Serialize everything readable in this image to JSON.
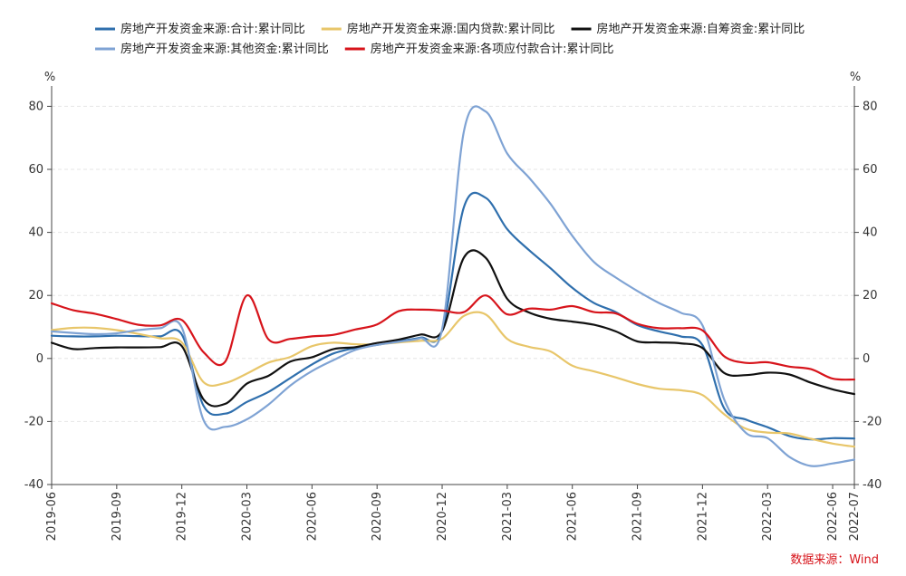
{
  "chart_data": {
    "type": "line",
    "y_unit_left": "%",
    "y_unit_right": "%",
    "ylim": [
      -40,
      85
    ],
    "yticks": [
      -40,
      -20,
      0,
      20,
      40,
      60,
      80
    ],
    "grid": true,
    "legend_position": "top",
    "source": "数据来源：Wind",
    "x": [
      "2019-06",
      "2019-07",
      "2019-08",
      "2019-09",
      "2019-10",
      "2019-11",
      "2019-12",
      "2020-01",
      "2020-02",
      "2020-03",
      "2020-04",
      "2020-05",
      "2020-06",
      "2020-07",
      "2020-08",
      "2020-09",
      "2020-10",
      "2020-11",
      "2020-12",
      "2021-01",
      "2021-02",
      "2021-03",
      "2021-04",
      "2021-05",
      "2021-06",
      "2021-07",
      "2021-08",
      "2021-09",
      "2021-10",
      "2021-11",
      "2021-12",
      "2022-01",
      "2022-02",
      "2022-03",
      "2022-04",
      "2022-05",
      "2022-06",
      "2022-07"
    ],
    "xtick_labels": [
      "2019-06",
      "2019-09",
      "2019-12",
      "2020-03",
      "2020-06",
      "2020-09",
      "2020-12",
      "2021-03",
      "2021-06",
      "2021-09",
      "2021-12",
      "2022-03",
      "2022-06",
      "2022-07"
    ],
    "series": [
      {
        "name": "房地产开发资金来源:合计:累计同比",
        "color": "#2f6fad",
        "values": [
          7.2,
          7.0,
          7.0,
          7.2,
          7.1,
          7.0,
          7.6,
          -15.0,
          -17.5,
          -13.8,
          -10.6,
          -6.2,
          -1.9,
          1.6,
          3.3,
          4.3,
          5.5,
          6.6,
          8.9,
          48.0,
          51.0,
          41.0,
          34.4,
          28.6,
          22.4,
          17.6,
          14.7,
          10.6,
          8.6,
          7.0,
          4.2,
          -15.8,
          -19.4,
          -21.8,
          -24.6,
          -25.7,
          -25.3,
          -25.4
        ]
      },
      {
        "name": "房地产开发资金来源:国内贷款:累计同比",
        "color": "#e8c66a",
        "values": [
          9.0,
          9.7,
          9.7,
          9.0,
          7.8,
          6.4,
          5.1,
          -7.5,
          -7.8,
          -4.8,
          -1.3,
          0.5,
          3.9,
          5.0,
          4.5,
          4.5,
          5.1,
          5.6,
          6.3,
          13.5,
          14.0,
          6.2,
          3.7,
          2.2,
          -2.3,
          -4.1,
          -6.0,
          -8.1,
          -9.6,
          -10.1,
          -11.6,
          -17.7,
          -22.3,
          -23.5,
          -23.8,
          -25.5,
          -27.0,
          -28.0
        ]
      },
      {
        "name": "房地产开发资金来源:自筹资金:累计同比",
        "color": "#111111",
        "values": [
          5.0,
          3.0,
          3.3,
          3.5,
          3.5,
          3.6,
          3.9,
          -13.0,
          -14.4,
          -8.0,
          -5.5,
          -1.0,
          0.4,
          3.0,
          3.6,
          4.9,
          6.0,
          7.6,
          8.7,
          32.0,
          32.0,
          18.9,
          14.6,
          12.6,
          11.7,
          10.7,
          8.6,
          5.4,
          5.1,
          4.8,
          3.3,
          -4.6,
          -5.3,
          -4.5,
          -5.1,
          -7.7,
          -9.8,
          -11.3
        ]
      },
      {
        "name": "房地产开发资金来源:其他资金:累计同比",
        "color": "#7fa3d4",
        "values": [
          8.6,
          8.1,
          7.7,
          8.0,
          9.0,
          9.6,
          9.8,
          -19.5,
          -21.7,
          -19.3,
          -14.6,
          -8.6,
          -4.0,
          -0.5,
          2.7,
          4.3,
          5.3,
          6.4,
          9.3,
          72.0,
          78.4,
          65.0,
          57.4,
          49.0,
          38.9,
          30.6,
          25.7,
          21.4,
          17.6,
          14.5,
          10.5,
          -13.0,
          -23.6,
          -25.3,
          -31.2,
          -34.1,
          -33.3,
          -32.1
        ]
      },
      {
        "name": "房地产开发资金来源:各项应付款合计:累计同比",
        "color": "#d7141b",
        "values": [
          17.5,
          15.3,
          14.2,
          12.5,
          10.7,
          10.5,
          12.2,
          2.0,
          -1.0,
          20.0,
          6.0,
          6.2,
          7.0,
          7.5,
          9.2,
          10.8,
          15.0,
          15.5,
          15.2,
          14.7,
          20.0,
          14.0,
          15.8,
          15.5,
          16.6,
          14.7,
          14.3,
          11.0,
          9.6,
          9.6,
          8.9,
          0.7,
          -1.4,
          -1.2,
          -2.6,
          -3.4,
          -6.4,
          -6.7
        ]
      }
    ]
  }
}
